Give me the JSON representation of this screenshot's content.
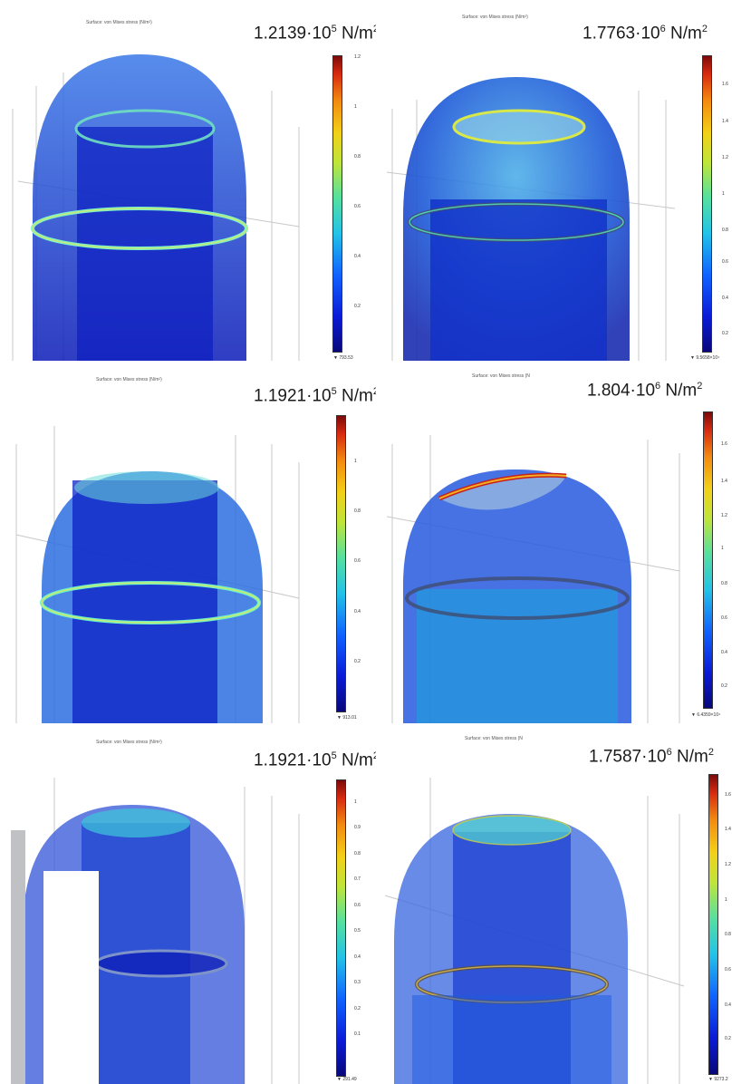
{
  "panels": [
    {
      "title": "Surface: von Mises stress (N/m²)",
      "max_mantissa": "1.2139·10",
      "max_exp": "5",
      "unit": "N/m",
      "unit_exp": "2",
      "ticks": [
        "1.2",
        "1",
        "0.8",
        "0.6",
        "0.4",
        "0.2"
      ],
      "min_label": "▼ 793.53"
    },
    {
      "title": "Surface: von Mises stress (N/m²)",
      "max_mantissa": "1.7763·10",
      "max_exp": "6",
      "unit": "N/m",
      "unit_exp": "2",
      "ticks": [
        "1.6",
        "1.4",
        "1.2",
        "1",
        "0.8",
        "0.6",
        "0.4",
        "0.2"
      ],
      "min_label": "▼ 9.5658×10⁴"
    },
    {
      "title": "Surface: von Mises stress (N/m²)",
      "max_mantissa": "1.1921·10",
      "max_exp": "5",
      "unit": "N/m",
      "unit_exp": "2",
      "ticks": [
        "1",
        "0.8",
        "0.6",
        "0.4",
        "0.2"
      ],
      "min_label": "▼ 913.01"
    },
    {
      "title": "Surface: von Mises stress (N",
      "max_mantissa": "1.804·10",
      "max_exp": "6",
      "unit": "N/m",
      "unit_exp": "2",
      "ticks": [
        "1.6",
        "1.4",
        "1.2",
        "1",
        "0.8",
        "0.6",
        "0.4",
        "0.2"
      ],
      "min_label": "▼ 6.4359×10⁴"
    },
    {
      "title": "Surface: von Mises stress (N/m²)",
      "max_mantissa": "1.1921·10",
      "max_exp": "5",
      "unit": "N/m",
      "unit_exp": "2",
      "ticks": [
        "1",
        "0.9",
        "0.8",
        "0.7",
        "0.6",
        "0.5",
        "0.4",
        "0.3",
        "0.2",
        "0.1"
      ],
      "min_label": "▼ 291.49"
    },
    {
      "title": "Surface: von Mises stress (N",
      "max_mantissa": "1.7587·10",
      "max_exp": "6",
      "unit": "N/m",
      "unit_exp": "2",
      "ticks": [
        "1.6",
        "1.4",
        "1.2",
        "1",
        "0.8",
        "0.6",
        "0.4",
        "0.2"
      ],
      "min_label": "▼ 9273.2"
    }
  ],
  "colors": {
    "low": "#0b1bd8",
    "mid": "#22c3e8",
    "high": "#d62a10"
  }
}
